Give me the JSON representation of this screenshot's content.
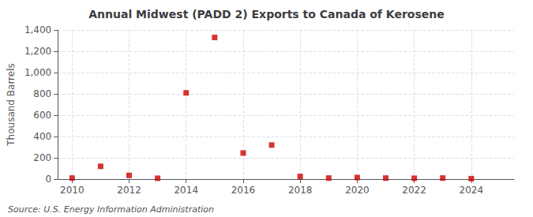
{
  "chart_data": {
    "type": "scatter",
    "title": "Annual Midwest (PADD 2) Exports to Canada of Kerosene",
    "ylabel": "Thousand Barrels",
    "annotations": [
      "Source: U.S. Energy Information Administration"
    ],
    "x": [
      2010,
      2011,
      2012,
      2013,
      2014,
      2015,
      2016,
      2017,
      2018,
      2019,
      2020,
      2021,
      2022,
      2023,
      2024
    ],
    "values": [
      10,
      120,
      35,
      8,
      810,
      1330,
      245,
      320,
      25,
      10,
      15,
      10,
      8,
      10,
      5
    ],
    "color": "#cc0000",
    "marker": "square",
    "xlim": [
      2009.5,
      2025.5
    ],
    "xticks": [
      2010,
      2012,
      2014,
      2016,
      2018,
      2020,
      2022,
      2024
    ],
    "ylim": [
      0,
      1400
    ],
    "yticks": [
      0,
      200,
      400,
      600,
      800,
      {
        "value": 1000,
        "label": "1,000"
      },
      {
        "value": 1200,
        "label": "1,200"
      },
      {
        "value": 1400,
        "label": "1,400"
      }
    ],
    "grid": true
  }
}
